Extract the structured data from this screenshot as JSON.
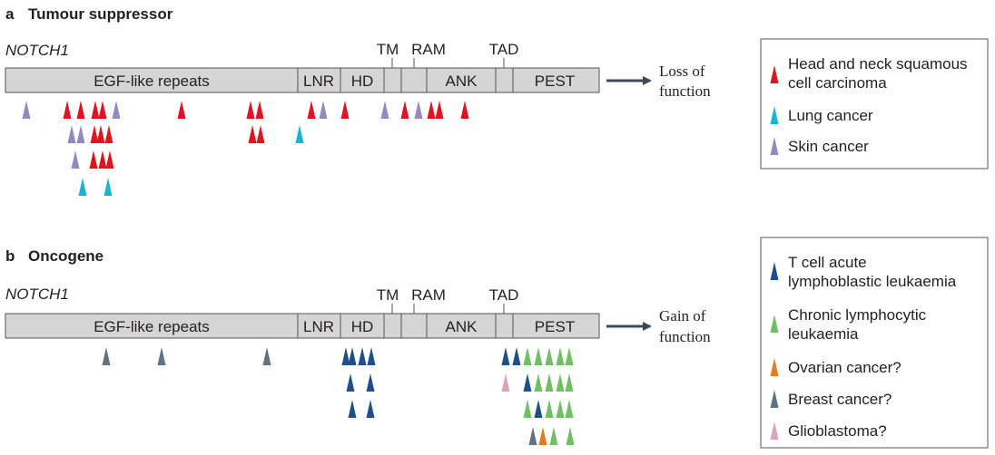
{
  "colors": {
    "head_neck": "#e0131f",
    "lung": "#19b2d8",
    "skin": "#9489c0",
    "tall": "#1f4e8c",
    "cll": "#6fbf63",
    "ovarian": "#e97a17",
    "breast": "#5f7383",
    "glioblastoma": "#e0a0c4",
    "protein_fill": "#d6d5d5",
    "arrow": "#3c4a55"
  },
  "panel_a": {
    "letter": "a",
    "title": "Tumour suppressor",
    "gene": "NOTCH1",
    "domains": {
      "egf": "EGF-like repeats",
      "lnr": "LNR",
      "hd": "HD",
      "tm": "TM",
      "ram": "RAM",
      "ank": "ANK",
      "tad": "TAD",
      "pest": "PEST"
    },
    "outcome_line1": "Loss of",
    "outcome_line2": "function",
    "legend": [
      {
        "key": "head_neck",
        "lines": [
          "Head and neck squamous",
          "cell carcinoma"
        ]
      },
      {
        "key": "lung",
        "lines": [
          "Lung cancer"
        ]
      },
      {
        "key": "skin",
        "lines": [
          "Skin cancer"
        ]
      }
    ]
  },
  "panel_b": {
    "letter": "b",
    "title": "Oncogene",
    "gene": "NOTCH1",
    "domains": {
      "egf": "EGF-like repeats",
      "lnr": "LNR",
      "hd": "HD",
      "tm": "TM",
      "ram": "RAM",
      "ank": "ANK",
      "tad": "TAD",
      "pest": "PEST"
    },
    "outcome_line1": "Gain of",
    "outcome_line2": "function",
    "legend": [
      {
        "key": "tall",
        "lines": [
          "T cell acute",
          "lymphoblastic leukaemia"
        ]
      },
      {
        "key": "cll",
        "lines": [
          "Chronic lymphocytic",
          "leukaemia"
        ]
      },
      {
        "key": "ovarian",
        "lines": [
          "Ovarian cancer?"
        ]
      },
      {
        "key": "breast",
        "lines": [
          "Breast cancer?"
        ]
      },
      {
        "key": "glioblastoma",
        "lines": [
          "Glioblastoma?"
        ]
      }
    ]
  }
}
